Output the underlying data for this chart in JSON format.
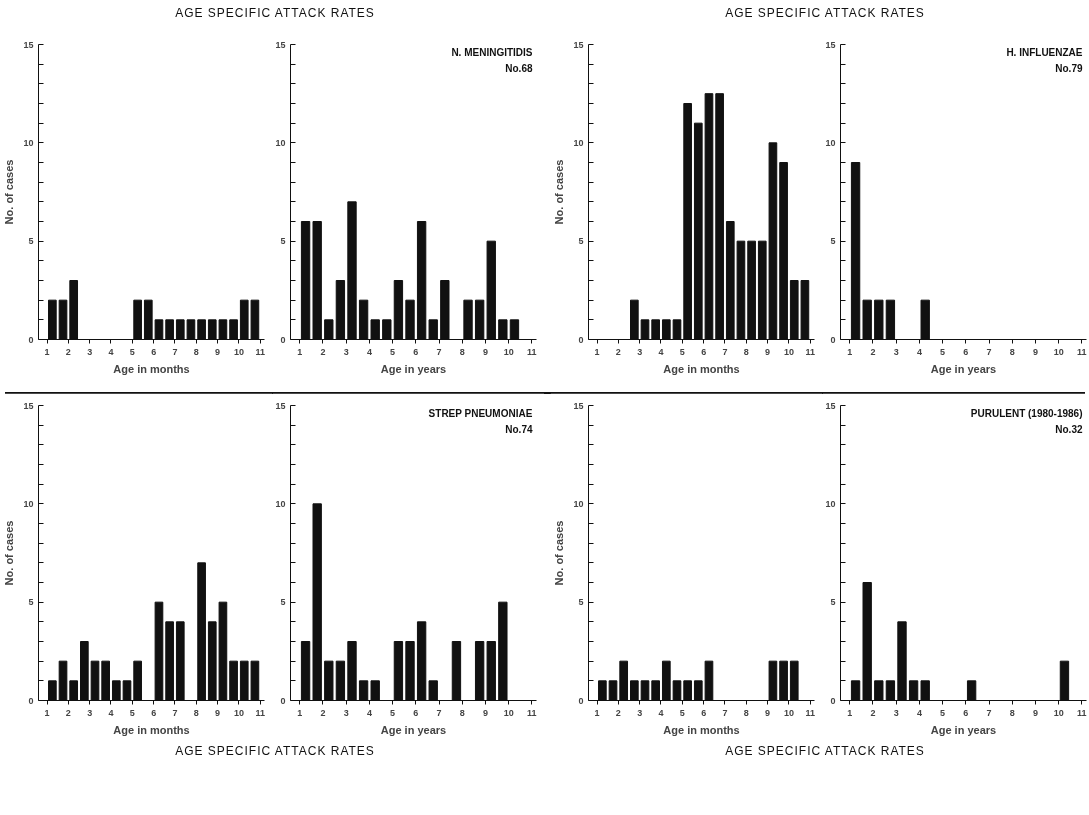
{
  "chart_data": [
    {
      "type": "bar",
      "title": "AGE SPECIFIC ATTACK RATES",
      "xlabel": "Age in months",
      "ylabel": "No. of cases",
      "color": "#111111",
      "grid": false,
      "x": [
        1.25,
        1.75,
        2.25,
        5.25,
        5.75,
        6.25,
        6.75,
        7.25,
        7.75,
        8.25,
        8.75,
        9.25,
        9.75,
        10.25,
        10.75
      ],
      "values": [
        2,
        2,
        3,
        2,
        2,
        1,
        1,
        1,
        1,
        1,
        1,
        1,
        1,
        2,
        2
      ],
      "xlim": [
        0.6,
        11.2
      ],
      "xticks": [
        1,
        2,
        3,
        4,
        5,
        6,
        7,
        8,
        9,
        10,
        11
      ],
      "ylim": [
        0,
        15
      ],
      "yticks": [
        0,
        {
          "value": 1,
          "label": null
        },
        {
          "value": 2,
          "label": null
        },
        {
          "value": 3,
          "label": null
        },
        {
          "value": 4,
          "label": null
        },
        5,
        {
          "value": 6,
          "label": null
        },
        {
          "value": 7,
          "label": null
        },
        {
          "value": 8,
          "label": null
        },
        {
          "value": 9,
          "label": null
        },
        10,
        {
          "value": 11,
          "label": null
        },
        {
          "value": 12,
          "label": null
        },
        {
          "value": 13,
          "label": null
        },
        {
          "value": 14,
          "label": null
        },
        15
      ]
    },
    {
      "type": "bar",
      "xlabel": "Age in years",
      "annotations": [
        "N. MENINGITIDIS",
        "No.68"
      ],
      "color": "#111111",
      "grid": false,
      "x": [
        1.25,
        1.75,
        2.25,
        2.75,
        3.25,
        3.75,
        4.25,
        4.75,
        5.25,
        5.75,
        6.25,
        6.75,
        7.25,
        8.25,
        8.75,
        9.25,
        9.75,
        10.25
      ],
      "values": [
        6,
        6,
        1,
        3,
        7,
        2,
        1,
        1,
        3,
        2,
        6,
        1,
        3,
        2,
        2,
        5,
        1,
        1
      ],
      "xlim": [
        0.6,
        11.2
      ],
      "xticks": [
        1,
        2,
        3,
        4,
        5,
        6,
        7,
        8,
        9,
        10,
        11
      ],
      "ylim": [
        0,
        15
      ],
      "yticks": [
        0,
        {
          "value": 1,
          "label": null
        },
        {
          "value": 2,
          "label": null
        },
        {
          "value": 3,
          "label": null
        },
        {
          "value": 4,
          "label": null
        },
        5,
        {
          "value": 6,
          "label": null
        },
        {
          "value": 7,
          "label": null
        },
        {
          "value": 8,
          "label": null
        },
        {
          "value": 9,
          "label": null
        },
        10,
        {
          "value": 11,
          "label": null
        },
        {
          "value": 12,
          "label": null
        },
        {
          "value": 13,
          "label": null
        },
        {
          "value": 14,
          "label": null
        },
        15
      ]
    },
    {
      "type": "bar",
      "title": "AGE SPECIFIC ATTACK RATES",
      "xlabel": "Age in months",
      "ylabel": "No. of cases",
      "color": "#111111",
      "grid": false,
      "x": [
        2.75,
        3.25,
        3.75,
        4.25,
        4.75,
        5.25,
        5.75,
        6.25,
        6.75,
        7.25,
        7.75,
        8.25,
        8.75,
        9.25,
        9.75,
        10.25,
        10.75
      ],
      "values": [
        2,
        1,
        1,
        1,
        1,
        12,
        11,
        12.5,
        12.5,
        6,
        5,
        5,
        5,
        10,
        9,
        3,
        3
      ],
      "xlim": [
        0.6,
        11.2
      ],
      "xticks": [
        1,
        2,
        3,
        4,
        5,
        6,
        7,
        8,
        9,
        10,
        11
      ],
      "ylim": [
        0,
        15
      ],
      "yticks": [
        0,
        {
          "value": 1,
          "label": null
        },
        {
          "value": 2,
          "label": null
        },
        {
          "value": 3,
          "label": null
        },
        {
          "value": 4,
          "label": null
        },
        5,
        {
          "value": 6,
          "label": null
        },
        {
          "value": 7,
          "label": null
        },
        {
          "value": 8,
          "label": null
        },
        {
          "value": 9,
          "label": null
        },
        10,
        {
          "value": 11,
          "label": null
        },
        {
          "value": 12,
          "label": null
        },
        {
          "value": 13,
          "label": null
        },
        {
          "value": 14,
          "label": null
        },
        15
      ]
    },
    {
      "type": "bar",
      "xlabel": "Age in years",
      "annotations": [
        "H. INFLUENZAE",
        "No.79"
      ],
      "color": "#111111",
      "grid": false,
      "x": [
        1.25,
        1.75,
        2.25,
        2.75,
        4.25
      ],
      "values": [
        9,
        2,
        2,
        2,
        2
      ],
      "xlim": [
        0.6,
        11.2
      ],
      "xticks": [
        1,
        2,
        3,
        4,
        5,
        6,
        7,
        8,
        9,
        10,
        11
      ],
      "ylim": [
        0,
        15
      ],
      "yticks": [
        0,
        {
          "value": 1,
          "label": null
        },
        {
          "value": 2,
          "label": null
        },
        {
          "value": 3,
          "label": null
        },
        {
          "value": 4,
          "label": null
        },
        5,
        {
          "value": 6,
          "label": null
        },
        {
          "value": 7,
          "label": null
        },
        {
          "value": 8,
          "label": null
        },
        {
          "value": 9,
          "label": null
        },
        10,
        {
          "value": 11,
          "label": null
        },
        {
          "value": 12,
          "label": null
        },
        {
          "value": 13,
          "label": null
        },
        {
          "value": 14,
          "label": null
        },
        15
      ]
    },
    {
      "type": "bar",
      "title": "AGE SPECIFIC ATTACK RATES",
      "xlabel": "Age in months",
      "ylabel": "No. of cases",
      "color": "#111111",
      "grid": false,
      "x": [
        1.25,
        1.75,
        2.25,
        2.75,
        3.25,
        3.75,
        4.25,
        4.75,
        5.25,
        6.25,
        6.75,
        7.25,
        8.25,
        8.75,
        9.25,
        9.75,
        10.25,
        10.75
      ],
      "values": [
        1,
        2,
        1,
        3,
        2,
        2,
        1,
        1,
        2,
        5,
        4,
        4,
        7,
        4,
        5,
        2,
        2,
        2
      ],
      "xlim": [
        0.6,
        11.2
      ],
      "xticks": [
        1,
        2,
        3,
        4,
        5,
        6,
        7,
        8,
        9,
        10,
        11
      ],
      "ylim": [
        0,
        15
      ],
      "yticks": [
        0,
        {
          "value": 1,
          "label": null
        },
        {
          "value": 2,
          "label": null
        },
        {
          "value": 3,
          "label": null
        },
        {
          "value": 4,
          "label": null
        },
        5,
        {
          "value": 6,
          "label": null
        },
        {
          "value": 7,
          "label": null
        },
        {
          "value": 8,
          "label": null
        },
        {
          "value": 9,
          "label": null
        },
        10,
        {
          "value": 11,
          "label": null
        },
        {
          "value": 12,
          "label": null
        },
        {
          "value": 13,
          "label": null
        },
        {
          "value": 14,
          "label": null
        },
        15
      ]
    },
    {
      "type": "bar",
      "xlabel": "Age in years",
      "annotations": [
        "STREP PNEUMONIAE",
        "No.74"
      ],
      "color": "#111111",
      "grid": false,
      "x": [
        1.25,
        1.75,
        2.25,
        2.75,
        3.25,
        3.75,
        4.25,
        5.25,
        5.75,
        6.25,
        6.75,
        7.75,
        8.75,
        9.25,
        9.75
      ],
      "values": [
        3,
        10,
        2,
        2,
        3,
        1,
        1,
        3,
        3,
        4,
        1,
        3,
        3,
        3,
        5
      ],
      "xlim": [
        0.6,
        11.2
      ],
      "xticks": [
        1,
        2,
        3,
        4,
        5,
        6,
        7,
        8,
        9,
        10,
        11
      ],
      "ylim": [
        0,
        15
      ],
      "yticks": [
        0,
        {
          "value": 1,
          "label": null
        },
        {
          "value": 2,
          "label": null
        },
        {
          "value": 3,
          "label": null
        },
        {
          "value": 4,
          "label": null
        },
        5,
        {
          "value": 6,
          "label": null
        },
        {
          "value": 7,
          "label": null
        },
        {
          "value": 8,
          "label": null
        },
        {
          "value": 9,
          "label": null
        },
        10,
        {
          "value": 11,
          "label": null
        },
        {
          "value": 12,
          "label": null
        },
        {
          "value": 13,
          "label": null
        },
        {
          "value": 14,
          "label": null
        },
        15
      ]
    },
    {
      "type": "bar",
      "title": "AGE SPECIFIC ATTACK RATES",
      "xlabel": "Age in months",
      "ylabel": "No. of cases",
      "color": "#111111",
      "grid": false,
      "x": [
        1.25,
        1.75,
        2.25,
        2.75,
        3.25,
        3.75,
        4.25,
        4.75,
        5.25,
        5.75,
        6.25,
        9.25,
        9.75,
        10.25
      ],
      "values": [
        1,
        1,
        2,
        1,
        1,
        1,
        2,
        1,
        1,
        1,
        2,
        2,
        2,
        2
      ],
      "xlim": [
        0.6,
        11.2
      ],
      "xticks": [
        1,
        2,
        3,
        4,
        5,
        6,
        7,
        8,
        9,
        10,
        11
      ],
      "ylim": [
        0,
        15
      ],
      "yticks": [
        0,
        {
          "value": 1,
          "label": null
        },
        {
          "value": 2,
          "label": null
        },
        {
          "value": 3,
          "label": null
        },
        {
          "value": 4,
          "label": null
        },
        5,
        {
          "value": 6,
          "label": null
        },
        {
          "value": 7,
          "label": null
        },
        {
          "value": 8,
          "label": null
        },
        {
          "value": 9,
          "label": null
        },
        10,
        {
          "value": 11,
          "label": null
        },
        {
          "value": 12,
          "label": null
        },
        {
          "value": 13,
          "label": null
        },
        {
          "value": 14,
          "label": null
        },
        15
      ]
    },
    {
      "type": "bar",
      "xlabel": "Age in years",
      "annotations": [
        "PURULENT (1980-1986)",
        "No.32"
      ],
      "color": "#111111",
      "grid": false,
      "x": [
        1.25,
        1.75,
        2.25,
        2.75,
        3.25,
        3.75,
        4.25,
        6.25,
        10.25
      ],
      "values": [
        1,
        6,
        1,
        1,
        4,
        1,
        1,
        1,
        2
      ],
      "xlim": [
        0.6,
        11.2
      ],
      "xticks": [
        1,
        2,
        3,
        4,
        5,
        6,
        7,
        8,
        9,
        10,
        11
      ],
      "ylim": [
        0,
        15
      ],
      "yticks": [
        0,
        {
          "value": 1,
          "label": null
        },
        {
          "value": 2,
          "label": null
        },
        {
          "value": 3,
          "label": null
        },
        {
          "value": 4,
          "label": null
        },
        5,
        {
          "value": 6,
          "label": null
        },
        {
          "value": 7,
          "label": null
        },
        {
          "value": 8,
          "label": null
        },
        {
          "value": 9,
          "label": null
        },
        10,
        {
          "value": 11,
          "label": null
        },
        {
          "value": 12,
          "label": null
        },
        {
          "value": 13,
          "label": null
        },
        {
          "value": 14,
          "label": null
        },
        15
      ]
    }
  ]
}
